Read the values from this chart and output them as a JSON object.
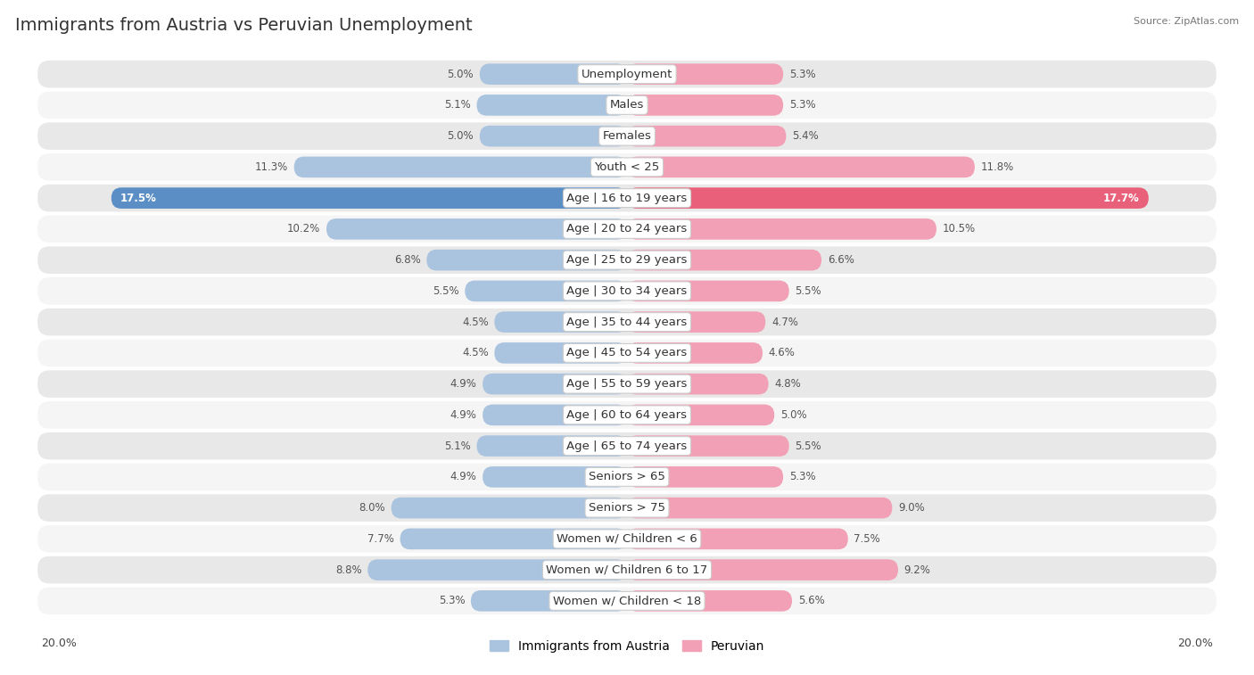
{
  "title": "Immigrants from Austria vs Peruvian Unemployment",
  "source": "Source: ZipAtlas.com",
  "categories": [
    "Unemployment",
    "Males",
    "Females",
    "Youth < 25",
    "Age | 16 to 19 years",
    "Age | 20 to 24 years",
    "Age | 25 to 29 years",
    "Age | 30 to 34 years",
    "Age | 35 to 44 years",
    "Age | 45 to 54 years",
    "Age | 55 to 59 years",
    "Age | 60 to 64 years",
    "Age | 65 to 74 years",
    "Seniors > 65",
    "Seniors > 75",
    "Women w/ Children < 6",
    "Women w/ Children 6 to 17",
    "Women w/ Children < 18"
  ],
  "left_values": [
    5.0,
    5.1,
    5.0,
    11.3,
    17.5,
    10.2,
    6.8,
    5.5,
    4.5,
    4.5,
    4.9,
    4.9,
    5.1,
    4.9,
    8.0,
    7.7,
    8.8,
    5.3
  ],
  "right_values": [
    5.3,
    5.3,
    5.4,
    11.8,
    17.7,
    10.5,
    6.6,
    5.5,
    4.7,
    4.6,
    4.8,
    5.0,
    5.5,
    5.3,
    9.0,
    7.5,
    9.2,
    5.6
  ],
  "left_color": "#aac4df",
  "right_color": "#f2a0b5",
  "highlight_left_color": "#5b8ec4",
  "highlight_right_color": "#e8607a",
  "highlight_row": 4,
  "axis_limit": 20.0,
  "bar_height": 0.68,
  "row_bg_color": "#e8e8e8",
  "row_bg_alt_color": "#f5f5f5",
  "legend_left": "Immigrants from Austria",
  "legend_right": "Peruvian",
  "title_fontsize": 14,
  "label_fontsize": 9.5,
  "value_fontsize": 8.5,
  "axis_label_fontsize": 9
}
